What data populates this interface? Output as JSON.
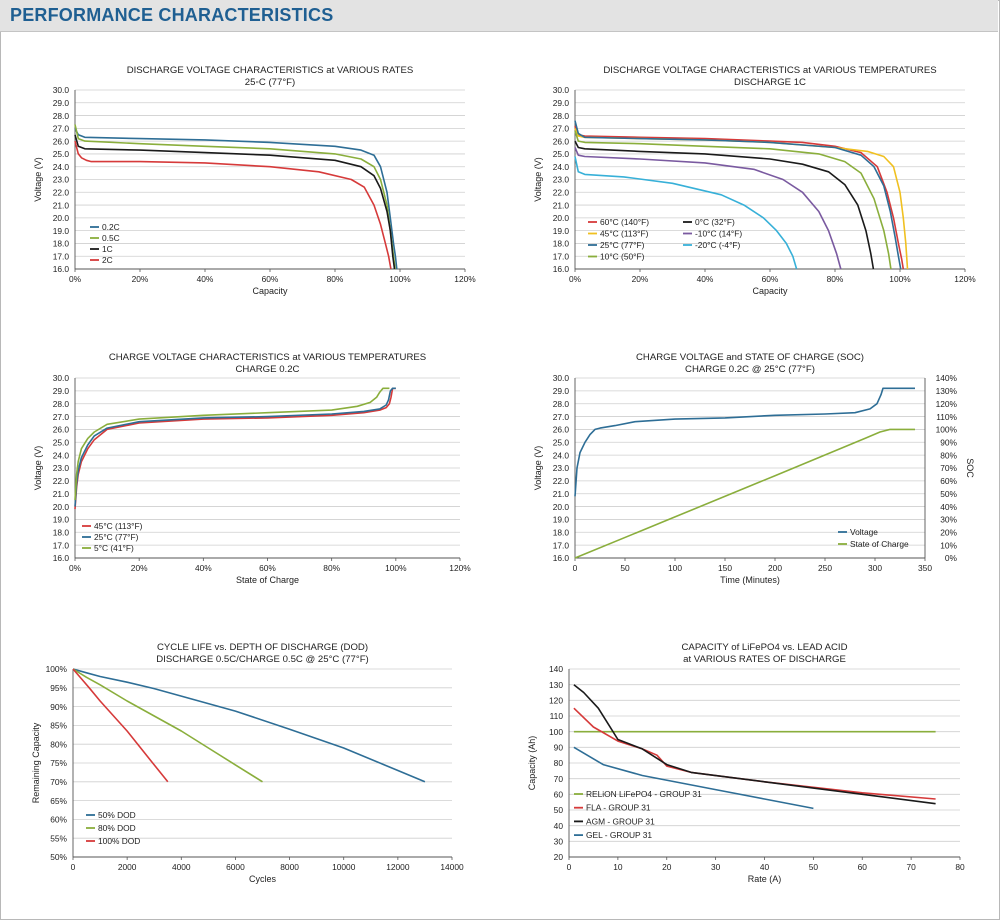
{
  "header": {
    "title": "PERFORMANCE CHARACTERISTICS"
  },
  "chart_data": [
    {
      "type": "line",
      "title": "DISCHARGE VOLTAGE CHARACTERISTICS at VARIOUS RATES",
      "subtitle": "25◦C (77°F)",
      "xlabel": "Capacity",
      "ylabel": "Voltage (V)",
      "xlim": [
        0,
        120
      ],
      "ylim": [
        16,
        30
      ],
      "xticks": [
        "0%",
        "20%",
        "40%",
        "60%",
        "80%",
        "100%",
        "120%"
      ],
      "yticks": [
        "16.0",
        "17.0",
        "18.0",
        "19.0",
        "20.0",
        "21.0",
        "22.0",
        "23.0",
        "24.0",
        "25.0",
        "26.0",
        "27.0",
        "28.0",
        "29.0",
        "30.0"
      ],
      "grid": true,
      "legend": "bottom-left",
      "series": [
        {
          "name": "0.2C",
          "color": "#2e6e96",
          "x": [
            0,
            1,
            3,
            20,
            40,
            60,
            80,
            88,
            92,
            94,
            96,
            97,
            98,
            98.6,
            99
          ],
          "y": [
            27.0,
            26.5,
            26.3,
            26.2,
            26.1,
            25.9,
            25.6,
            25.3,
            24.9,
            24.0,
            22.0,
            20.0,
            18.0,
            17.0,
            16.0
          ]
        },
        {
          "name": "0.5C",
          "color": "#8aae3c",
          "x": [
            0,
            1,
            3,
            20,
            40,
            60,
            80,
            88,
            92,
            94,
            96,
            97,
            98,
            98.5
          ],
          "y": [
            27.3,
            26.2,
            26.0,
            25.8,
            25.6,
            25.4,
            25.0,
            24.6,
            24.0,
            23.0,
            21.0,
            19.0,
            17.0,
            16.0
          ]
        },
        {
          "name": "1C",
          "color": "#1a1a1a",
          "x": [
            0,
            1,
            3,
            20,
            40,
            60,
            80,
            88,
            92,
            94,
            96,
            97,
            97.8,
            98.3
          ],
          "y": [
            26.5,
            25.6,
            25.4,
            25.3,
            25.1,
            24.9,
            24.5,
            24.0,
            23.3,
            22.3,
            20.5,
            19.0,
            17.0,
            16.0
          ]
        },
        {
          "name": "2C",
          "color": "#d63a3a",
          "x": [
            0,
            1,
            2,
            3.5,
            5,
            20,
            40,
            60,
            75,
            85,
            89,
            92,
            94,
            95.5,
            96.5,
            97.2
          ],
          "y": [
            26.0,
            25.0,
            24.7,
            24.5,
            24.4,
            24.4,
            24.3,
            24.0,
            23.6,
            23.0,
            22.4,
            21.0,
            19.5,
            18.0,
            17.0,
            16.0
          ]
        }
      ]
    },
    {
      "type": "line",
      "title": "DISCHARGE VOLTAGE CHARACTERISTICS at VARIOUS TEMPERATURES",
      "subtitle": "DISCHARGE 1C",
      "xlabel": "Capacity",
      "ylabel": "Voltage (V)",
      "xlim": [
        0,
        120
      ],
      "ylim": [
        16,
        30
      ],
      "xticks": [
        "0%",
        "20%",
        "40%",
        "60%",
        "80%",
        "100%",
        "120%"
      ],
      "yticks": [
        "16.0",
        "17.0",
        "18.0",
        "19.0",
        "20.0",
        "21.0",
        "22.0",
        "23.0",
        "24.0",
        "25.0",
        "26.0",
        "27.0",
        "28.0",
        "29.0",
        "30.0"
      ],
      "grid": true,
      "legend": "bottom-left",
      "series": [
        {
          "name": "60°C  (140°F)",
          "color": "#d63a3a",
          "x": [
            0,
            1,
            3,
            20,
            40,
            60,
            70,
            80,
            88,
            93,
            96,
            98,
            99.5,
            100.5,
            101
          ],
          "y": [
            27.2,
            26.5,
            26.4,
            26.3,
            26.2,
            26.0,
            25.9,
            25.6,
            25.1,
            24.0,
            22.0,
            20.0,
            18.0,
            16.8,
            16.0
          ]
        },
        {
          "name": "45°C  (113°F)",
          "color": "#f0c020",
          "x": [
            0,
            1,
            3,
            20,
            40,
            60,
            80,
            90,
            95,
            98,
            100,
            101,
            101.8,
            102.3
          ],
          "y": [
            27.0,
            26.4,
            26.3,
            26.2,
            26.1,
            25.9,
            25.5,
            25.2,
            24.8,
            24.0,
            22.0,
            20.0,
            18.0,
            16.0
          ]
        },
        {
          "name": "25°C  (77°F)",
          "color": "#2e6e96",
          "x": [
            0,
            1,
            3,
            20,
            40,
            60,
            80,
            88,
            92,
            95,
            97,
            98.5,
            99.5,
            100.2
          ],
          "y": [
            27.6,
            26.6,
            26.3,
            26.2,
            26.1,
            25.9,
            25.5,
            24.9,
            24.0,
            22.5,
            20.5,
            18.5,
            17.0,
            16.0
          ]
        },
        {
          "name": "10°C  (50°F)",
          "color": "#8aae3c",
          "x": [
            0,
            1,
            3,
            20,
            40,
            60,
            75,
            83,
            88,
            92,
            95,
            96.5,
            97.2
          ],
          "y": [
            26.8,
            26.0,
            25.9,
            25.8,
            25.6,
            25.4,
            25.0,
            24.4,
            23.5,
            21.5,
            19.0,
            17.2,
            16.0
          ]
        },
        {
          "name": "0°C  (32°F)",
          "color": "#1a1a1a",
          "x": [
            0,
            1,
            3,
            20,
            40,
            60,
            70,
            78,
            83,
            87,
            89.5,
            91,
            91.8
          ],
          "y": [
            26.0,
            25.5,
            25.4,
            25.2,
            25.0,
            24.6,
            24.2,
            23.6,
            22.6,
            21.0,
            19.0,
            17.2,
            16.0
          ]
        },
        {
          "name": "-10°C  (14°F)",
          "color": "#7a5aa0",
          "x": [
            0,
            1,
            3,
            20,
            40,
            55,
            64,
            70,
            75,
            78,
            80.5,
            81.8
          ],
          "y": [
            25.5,
            24.9,
            24.8,
            24.6,
            24.3,
            23.8,
            23.0,
            22.0,
            20.5,
            19.0,
            17.2,
            16.0
          ]
        },
        {
          "name": "-20°C  (-4°F)",
          "color": "#37b0d8",
          "x": [
            0,
            1,
            3,
            15,
            30,
            45,
            52,
            58,
            62,
            65,
            67,
            68.2
          ],
          "y": [
            24.8,
            23.6,
            23.4,
            23.2,
            22.7,
            21.8,
            21.0,
            20.0,
            19.0,
            18.0,
            17.0,
            16.0
          ]
        }
      ]
    },
    {
      "type": "line",
      "title": "CHARGE VOLTAGE CHARACTERISTICS at VARIOUS TEMPERATURES",
      "subtitle": "CHARGE 0.2C",
      "xlabel": "State of Charge",
      "ylabel": "Voltage (V)",
      "xlim": [
        0,
        120
      ],
      "ylim": [
        16,
        30
      ],
      "xticks": [
        "0%",
        "20%",
        "40%",
        "60%",
        "80%",
        "100%",
        "120%"
      ],
      "yticks": [
        "16.0",
        "17.0",
        "18.0",
        "19.0",
        "20.0",
        "21.0",
        "22.0",
        "23.0",
        "24.0",
        "25.0",
        "26.0",
        "27.0",
        "28.0",
        "29.0",
        "30.0"
      ],
      "grid": true,
      "legend": "bottom-left",
      "series": [
        {
          "name": "45°C  (113°F)",
          "color": "#d63a3a",
          "x": [
            0,
            0.5,
            1,
            2,
            4,
            6,
            10,
            20,
            40,
            60,
            80,
            90,
            95,
            97,
            98,
            98.5,
            99,
            100
          ],
          "y": [
            19.8,
            21.5,
            22.5,
            23.5,
            24.5,
            25.2,
            26.0,
            26.5,
            26.8,
            26.9,
            27.1,
            27.3,
            27.5,
            27.7,
            28.0,
            28.5,
            29.2,
            29.2
          ]
        },
        {
          "name": "25°C  (77°F)",
          "color": "#2e6e96",
          "x": [
            0,
            0.5,
            1,
            2,
            4,
            6,
            10,
            20,
            40,
            60,
            80,
            90,
            95,
            97,
            97.7,
            98.3,
            99,
            100
          ],
          "y": [
            20.0,
            21.8,
            22.8,
            23.8,
            24.8,
            25.5,
            26.1,
            26.6,
            26.9,
            27.0,
            27.2,
            27.4,
            27.6,
            27.9,
            28.3,
            29.0,
            29.2,
            29.2
          ]
        },
        {
          "name": "5°C  (41°F)",
          "color": "#8aae3c",
          "x": [
            0,
            0.5,
            1,
            2,
            4,
            6,
            10,
            20,
            40,
            60,
            80,
            88,
            92,
            94,
            95,
            96,
            97,
            98
          ],
          "y": [
            20.5,
            22.5,
            23.5,
            24.5,
            25.3,
            25.8,
            26.4,
            26.8,
            27.1,
            27.3,
            27.5,
            27.8,
            28.1,
            28.5,
            28.9,
            29.2,
            29.2,
            29.2
          ]
        }
      ]
    },
    {
      "type": "line",
      "title": "CHARGE VOLTAGE and STATE OF CHARGE (SOC)",
      "subtitle": "CHARGE 0.2C @ 25°C (77°F)",
      "xlabel": "Time (Minutes)",
      "ylabel": "Voltage (V)",
      "y2label": "SOC",
      "xlim": [
        0,
        350
      ],
      "ylim": [
        16,
        30
      ],
      "y2lim": [
        0,
        140
      ],
      "xticks": [
        "0",
        "50",
        "100",
        "150",
        "200",
        "250",
        "300",
        "350"
      ],
      "yticks": [
        "16.0",
        "17.0",
        "18.0",
        "19.0",
        "20.0",
        "21.0",
        "22.0",
        "23.0",
        "24.0",
        "25.0",
        "26.0",
        "27.0",
        "28.0",
        "29.0",
        "30.0"
      ],
      "y2ticks": [
        "0%",
        "10%",
        "20%",
        "30%",
        "40%",
        "50%",
        "60%",
        "70%",
        "80%",
        "90%",
        "100%",
        "110%",
        "120%",
        "130%",
        "140%"
      ],
      "grid": true,
      "legend": "bottom-right",
      "series": [
        {
          "name": "Voltage",
          "axis": "left",
          "color": "#2e6e96",
          "x": [
            0,
            2,
            5,
            10,
            15,
            20,
            25,
            40,
            60,
            100,
            150,
            200,
            250,
            280,
            295,
            302,
            306,
            308,
            310,
            320,
            340
          ],
          "y": [
            20.8,
            23.0,
            24.2,
            25.0,
            25.6,
            26.0,
            26.1,
            26.3,
            26.6,
            26.8,
            26.9,
            27.1,
            27.2,
            27.3,
            27.6,
            28.0,
            28.7,
            29.2,
            29.2,
            29.2,
            29.2
          ]
        },
        {
          "name": "State of Charge",
          "axis": "right",
          "color": "#8aae3c",
          "x": [
            0,
            100,
            200,
            290,
            305,
            315,
            340
          ],
          "y": [
            0,
            32,
            64,
            93,
            98,
            100,
            100
          ]
        }
      ]
    },
    {
      "type": "line",
      "title": "CYCLE LIFE vs. DEPTH OF DISCHARGE (DOD)",
      "subtitle": "DISCHARGE 0.5C/CHARGE 0.5C @ 25°C (77°F)",
      "xlabel": "Cycles",
      "ylabel": "Remaining Capacity",
      "xlim": [
        0,
        14000
      ],
      "ylim": [
        50,
        100
      ],
      "xticks": [
        "0",
        "2000",
        "4000",
        "6000",
        "8000",
        "10000",
        "12000",
        "14000"
      ],
      "yticks": [
        "50%",
        "55%",
        "60%",
        "65%",
        "70%",
        "75%",
        "80%",
        "85%",
        "90%",
        "95%",
        "100%"
      ],
      "grid": true,
      "legend": "bottom-left",
      "series": [
        {
          "name": "50% DOD",
          "color": "#2e6e96",
          "x": [
            0,
            500,
            1000,
            2000,
            3000,
            4000,
            6000,
            8000,
            10000,
            12000,
            13000
          ],
          "y": [
            100,
            99,
            98,
            96.5,
            94.8,
            92.8,
            88.8,
            84.0,
            79.0,
            73.0,
            70.0
          ]
        },
        {
          "name": "80% DOD",
          "color": "#8aae3c",
          "x": [
            0,
            500,
            1000,
            2000,
            3000,
            4000,
            5000,
            6000,
            7000
          ],
          "y": [
            100,
            97.8,
            95.8,
            91.5,
            87.5,
            83.5,
            79.0,
            74.5,
            70.0
          ]
        },
        {
          "name": "100% DOD",
          "color": "#d63a3a",
          "x": [
            0,
            300,
            600,
            1000,
            1500,
            2000,
            2500,
            3000,
            3500
          ],
          "y": [
            100,
            97.5,
            95.0,
            91.5,
            87.5,
            83.5,
            79.0,
            74.5,
            70.0
          ]
        }
      ]
    },
    {
      "type": "line",
      "title": "CAPACITY of  LiFePO4 vs. LEAD ACID",
      "subtitle": "at VARIOUS RATES OF DISCHARGE",
      "xlabel": "Rate (A)",
      "ylabel": "Capacity (Ah)",
      "xlim": [
        0,
        80
      ],
      "ylim": [
        20,
        140
      ],
      "xticks": [
        "0",
        "10",
        "20",
        "30",
        "40",
        "50",
        "60",
        "70",
        "80"
      ],
      "yticks": [
        "20",
        "30",
        "40",
        "50",
        "60",
        "70",
        "80",
        "90",
        "100",
        "110",
        "120",
        "130",
        "140"
      ],
      "grid": true,
      "legend": "bottom-left",
      "series": [
        {
          "name": "RELiON LiFePO4 - GROUP 31",
          "color": "#8aae3c",
          "x": [
            1,
            75
          ],
          "y": [
            100,
            100
          ]
        },
        {
          "name": "FLA - GROUP 31",
          "color": "#d63a3a",
          "x": [
            1,
            5,
            10,
            15,
            18,
            20,
            25,
            40,
            60,
            75
          ],
          "y": [
            115,
            103,
            94,
            89,
            85,
            78,
            74,
            68,
            61,
            57
          ]
        },
        {
          "name": "AGM - GROUP 31",
          "color": "#1a1a1a",
          "x": [
            1,
            3,
            6,
            8,
            10,
            15,
            20,
            25,
            40,
            60,
            75
          ],
          "y": [
            130,
            125,
            115,
            105,
            95,
            89,
            79,
            74,
            68,
            60,
            54
          ]
        },
        {
          "name": "GEL - GROUP 31",
          "color": "#2e6e96",
          "x": [
            1,
            7,
            15,
            30,
            40,
            50
          ],
          "y": [
            90,
            79,
            72,
            63,
            57,
            51
          ]
        }
      ]
    }
  ]
}
